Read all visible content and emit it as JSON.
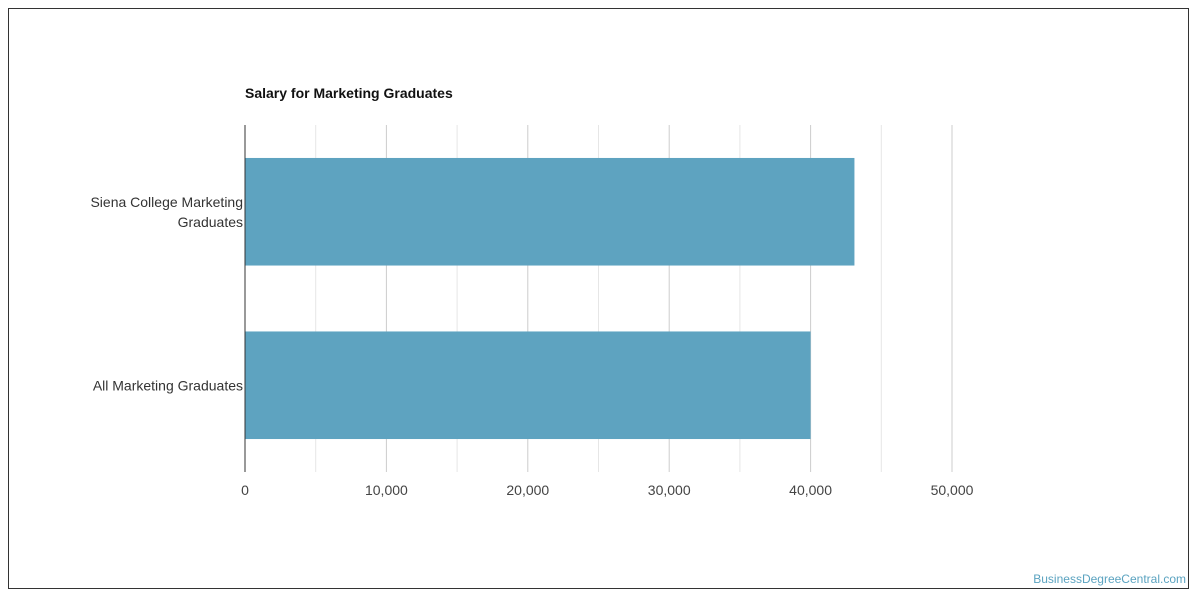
{
  "chart_data": {
    "type": "bar",
    "orientation": "horizontal",
    "title": "Salary for Marketing Graduates",
    "categories": [
      "Siena College Marketing Graduates",
      "All Marketing Graduates"
    ],
    "category_label_lines": [
      [
        "Siena College Marketing",
        "Graduates"
      ],
      [
        "All Marketing Graduates"
      ]
    ],
    "values": [
      43100,
      40000
    ],
    "xlim": [
      0,
      50000
    ],
    "xticks": [
      0,
      10000,
      20000,
      30000,
      40000,
      50000
    ],
    "xtick_labels": [
      "0",
      "10,000",
      "20,000",
      "30,000",
      "40,000",
      "50,000"
    ],
    "xlabel": "",
    "ylabel": "",
    "grid": true,
    "bar_color": "#5ea3c0"
  },
  "watermark": "BusinessDegreeCentral.com"
}
